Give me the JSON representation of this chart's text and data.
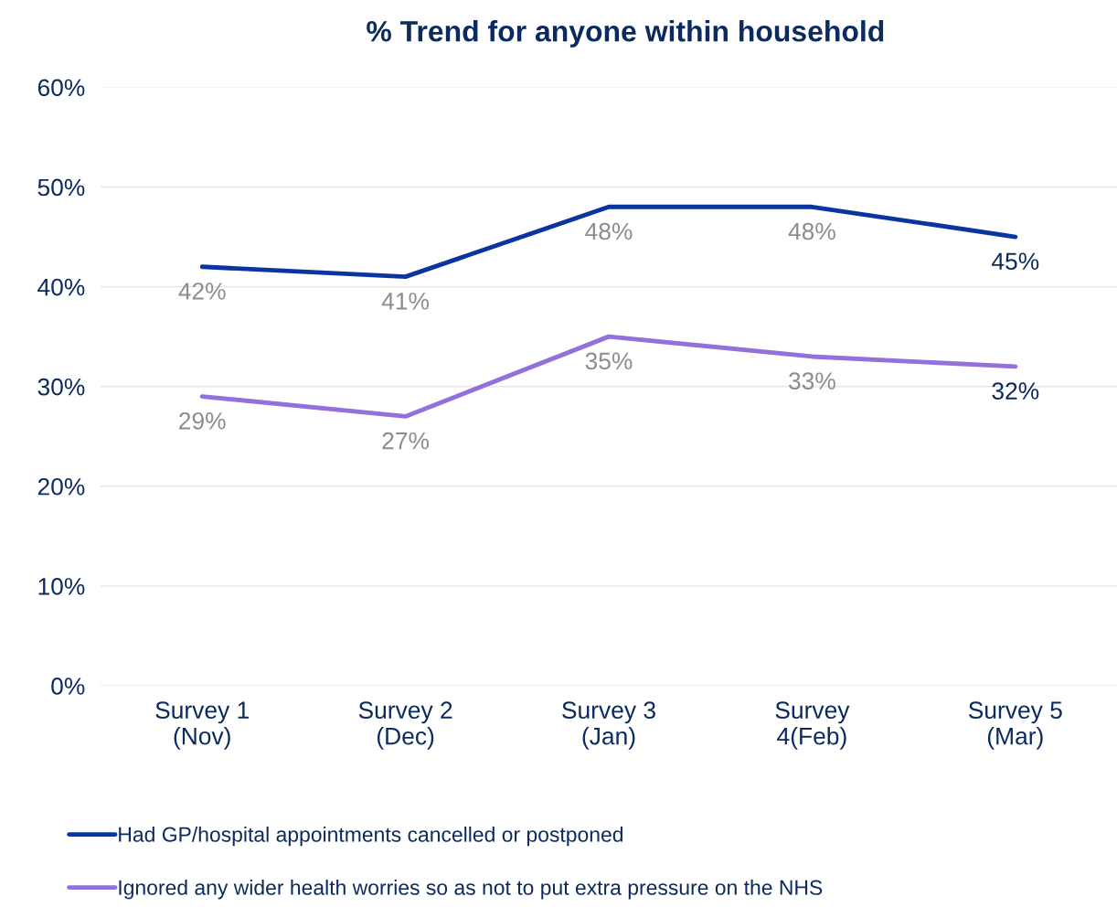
{
  "chart_data": {
    "type": "line",
    "title": "% Trend for anyone within household",
    "categories": [
      "Survey 1\n(Nov)",
      "Survey 2\n(Dec)",
      "Survey 3\n(Jan)",
      "Survey\n4(Feb)",
      "Survey 5\n(Mar)"
    ],
    "series": [
      {
        "name": "Had GP/hospital appointments cancelled or postponed",
        "color": "#0a34a0",
        "values": [
          42,
          41,
          48,
          48,
          45
        ],
        "value_labels": [
          "42%",
          "41%",
          "48%",
          "48%",
          "45%"
        ]
      },
      {
        "name": "Ignored any wider health worries so as not to put extra pressure on the NHS",
        "color": "#9370db",
        "values": [
          29,
          27,
          35,
          33,
          32
        ],
        "value_labels": [
          "29%",
          "27%",
          "35%",
          "33%",
          "32%"
        ]
      }
    ],
    "ylim": [
      0,
      60
    ],
    "yticks": [
      {
        "value": 0,
        "label": "0%"
      },
      {
        "value": 10,
        "label": "10%"
      },
      {
        "value": 20,
        "label": "20%"
      },
      {
        "value": 30,
        "label": "30%"
      },
      {
        "value": 40,
        "label": "40%"
      },
      {
        "value": 50,
        "label": "50%"
      },
      {
        "value": 60,
        "label": "60%"
      }
    ],
    "grid": "y",
    "legend": "bottom",
    "marker": "none",
    "line_style": "solid"
  }
}
